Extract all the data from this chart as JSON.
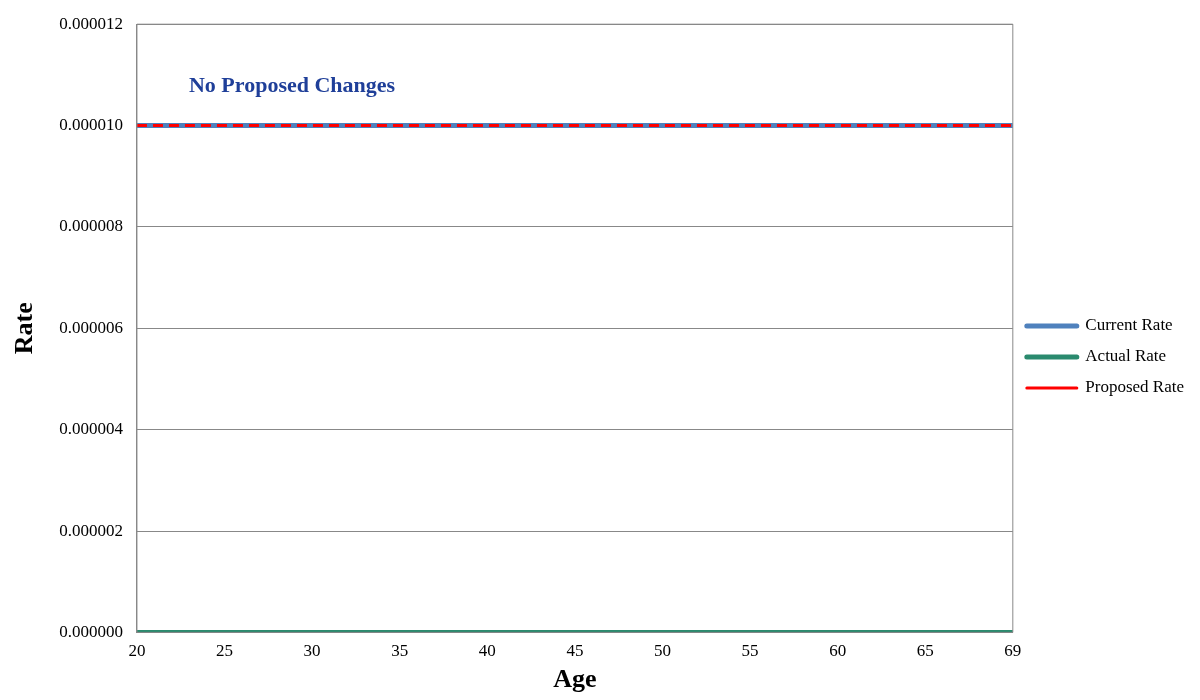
{
  "chart_data": {
    "type": "line",
    "xlabel": "Age",
    "ylabel": "Rate",
    "categories": [
      "20",
      "25",
      "30",
      "35",
      "40",
      "45",
      "50",
      "55",
      "60",
      "65",
      "69"
    ],
    "series": [
      {
        "name": "Current Rate",
        "color": "#4f81bd",
        "values": [
          1e-05,
          1e-05,
          1e-05,
          1e-05,
          1e-05,
          1e-05,
          1e-05,
          1e-05,
          1e-05,
          1e-05,
          1e-05
        ],
        "line_style": "solid"
      },
      {
        "name": "Actual Rate",
        "color": "#2a8a6e",
        "values": [
          0,
          0,
          0,
          0,
          0,
          0,
          0,
          0,
          0,
          0,
          0
        ],
        "line_style": "solid"
      },
      {
        "name": "Proposed Rate",
        "color": "#ff0000",
        "values": [
          1e-05,
          1e-05,
          1e-05,
          1e-05,
          1e-05,
          1e-05,
          1e-05,
          1e-05,
          1e-05,
          1e-05,
          1e-05
        ],
        "line_style": "dashed"
      }
    ],
    "ylim": [
      0,
      1.2e-05
    ],
    "yticks": [
      {
        "value": 0,
        "label": "0.000000"
      },
      {
        "value": 2e-06,
        "label": "0.000002"
      },
      {
        "value": 4e-06,
        "label": "0.000004"
      },
      {
        "value": 6e-06,
        "label": "0.000006"
      },
      {
        "value": 8e-06,
        "label": "0.000008"
      },
      {
        "value": 1e-05,
        "label": "0.000010"
      },
      {
        "value": 1.2e-05,
        "label": "0.000012"
      }
    ],
    "annotations": [
      "No Proposed Changes"
    ],
    "grid": "y",
    "legend": "right",
    "marker": "none"
  }
}
